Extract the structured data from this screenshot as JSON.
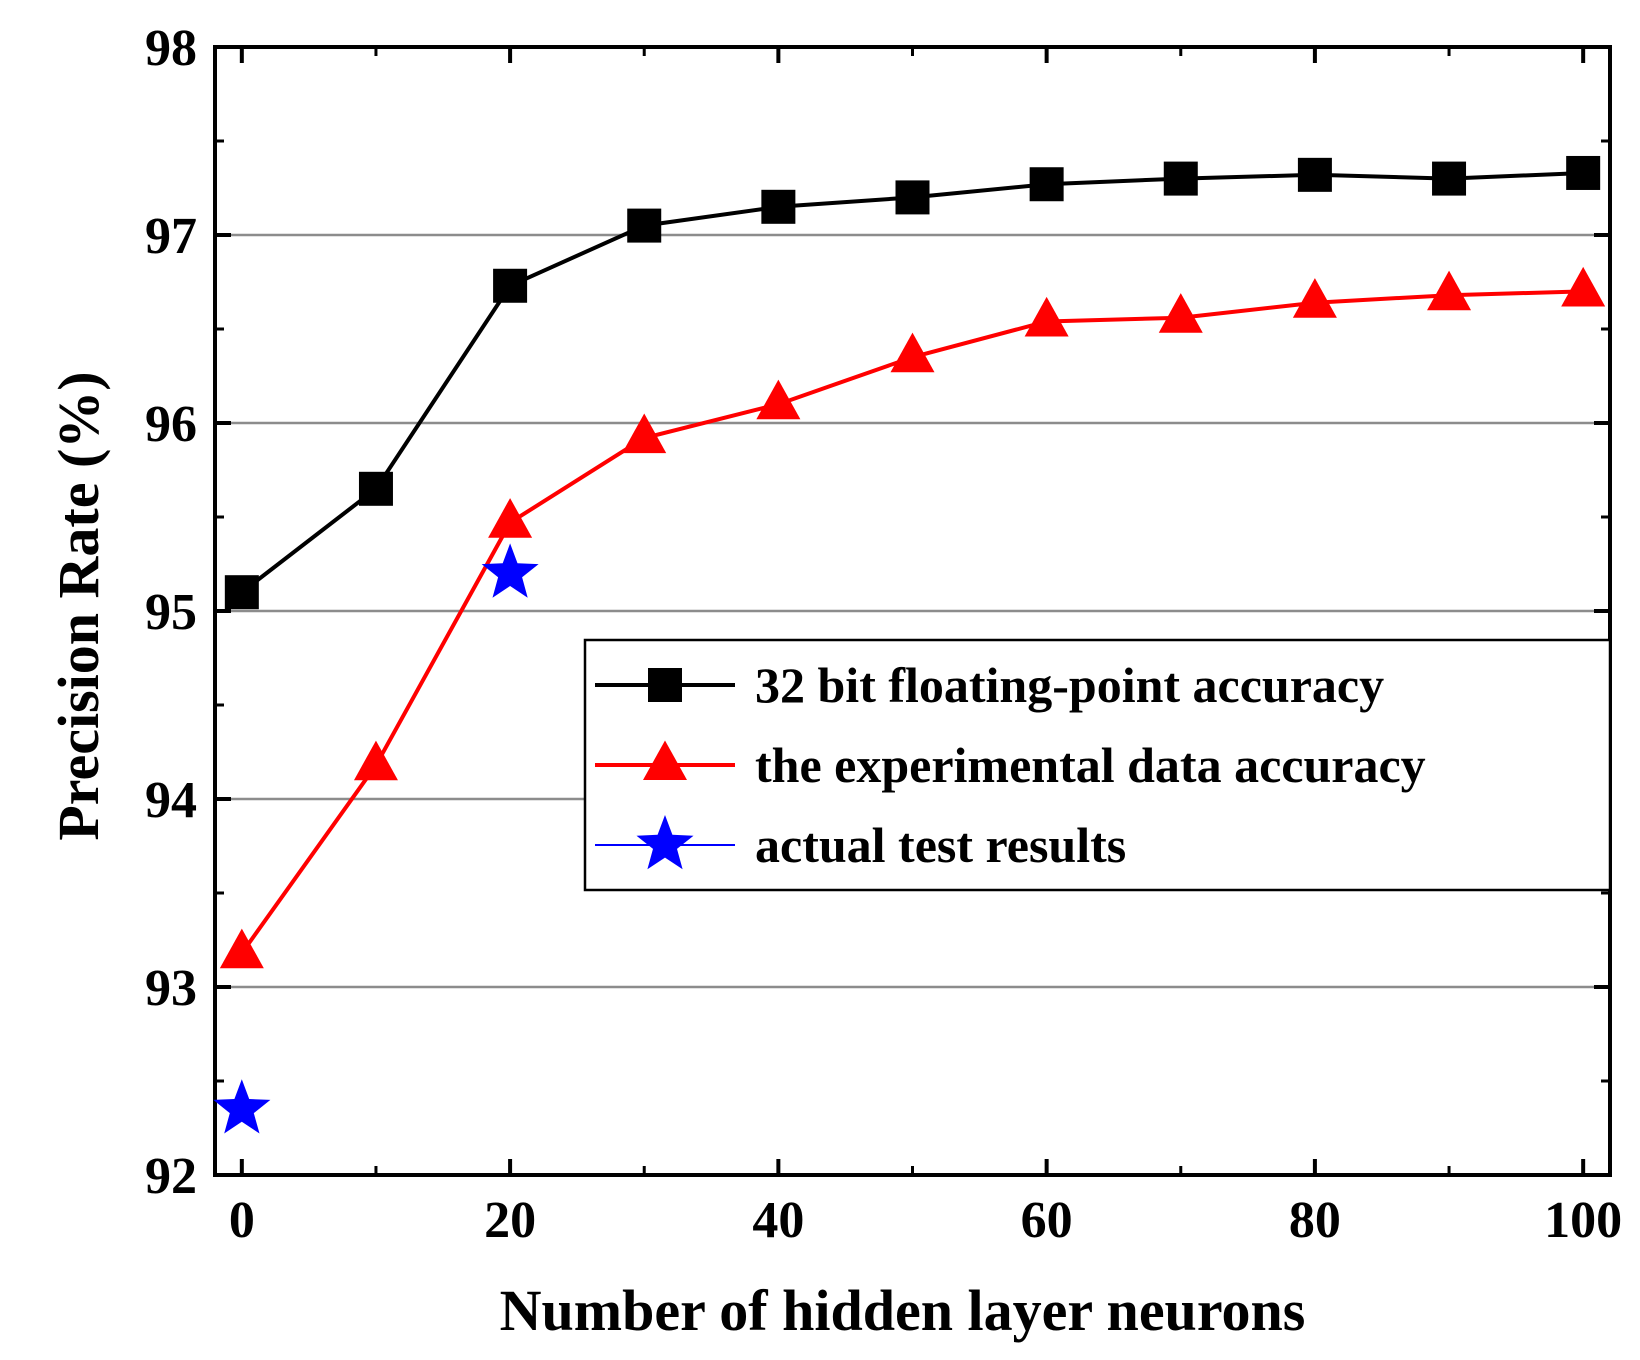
{
  "chart_data": {
    "type": "line",
    "xlabel": "Number of hidden layer neurons",
    "ylabel": "Precision Rate (%)",
    "xlim": [
      -2,
      102
    ],
    "ylim": [
      92,
      98
    ],
    "xticks": [
      0,
      20,
      40,
      60,
      80,
      100
    ],
    "yticks": [
      92,
      93,
      94,
      95,
      96,
      97,
      98
    ],
    "grid": "horizontal",
    "legend_position": "center-right",
    "series": [
      {
        "name": "32 bit floating-point accuracy",
        "color": "#000000",
        "marker": "square",
        "line": true,
        "x": [
          0,
          10,
          20,
          30,
          40,
          50,
          60,
          70,
          80,
          90,
          100
        ],
        "y": [
          95.1,
          95.65,
          96.73,
          97.05,
          97.15,
          97.2,
          97.27,
          97.3,
          97.32,
          97.3,
          97.33
        ]
      },
      {
        "name": "the experimental data accuracy",
        "color": "#ff0000",
        "marker": "triangle",
        "line": true,
        "x": [
          0,
          10,
          20,
          30,
          40,
          50,
          60,
          70,
          80,
          90,
          100
        ],
        "y": [
          93.18,
          94.18,
          95.47,
          95.92,
          96.1,
          96.35,
          96.54,
          96.56,
          96.64,
          96.68,
          96.7
        ]
      },
      {
        "name": "actual test results",
        "color": "#0000ff",
        "marker": "star",
        "line": false,
        "x": [
          0,
          20
        ],
        "y": [
          92.35,
          95.2
        ]
      }
    ]
  }
}
